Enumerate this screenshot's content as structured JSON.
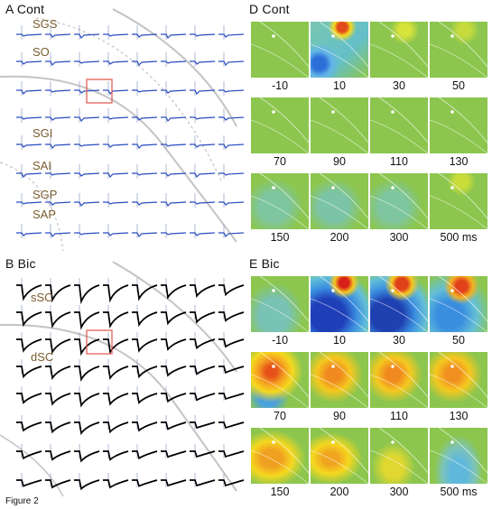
{
  "figure_label": "Figure 2",
  "panels": {
    "A": {
      "title": "A Cont",
      "layers": [
        "SGS",
        "SO",
        "SGI",
        "SAI",
        "SGP",
        "SAP"
      ]
    },
    "B": {
      "title": "B Bic",
      "layers": [
        "sSC",
        "dSC"
      ]
    },
    "D": {
      "title": "D Cont",
      "latencies": [
        "-10",
        "10",
        "30",
        "50",
        "70",
        "90",
        "110",
        "130",
        "150",
        "200",
        "300",
        "500 ms"
      ]
    },
    "E": {
      "title": "E Bic",
      "latencies": [
        "-10",
        "10",
        "30",
        "50",
        "70",
        "90",
        "110",
        "130",
        "150",
        "200",
        "300",
        "500 ms"
      ]
    }
  },
  "colors": {
    "trace_control": "#2a4cc0",
    "trace_bic": "#000000",
    "highlight_box": "#e0554a",
    "boundary_line": "#bdbdbd",
    "layer_label": "#7a5c2e",
    "map_baseline": "#8cc64e"
  }
}
